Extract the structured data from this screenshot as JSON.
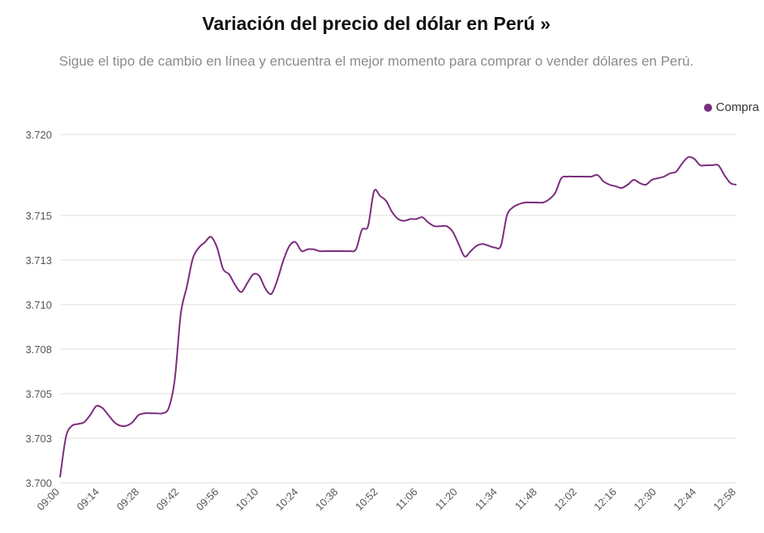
{
  "header": {
    "title": "Variación del precio del dólar en Perú »",
    "subtitle": "Sigue el tipo de cambio en línea y encuentra el mejor momento para comprar o vender dólares en Perú."
  },
  "legend": {
    "label": "Compra",
    "color": "#7b2c7e"
  },
  "chart_data": {
    "type": "line",
    "title": "Variación del precio del dólar en Perú »",
    "subtitle": "Sigue el tipo de cambio en línea y encuentra el mejor momento para comprar o vender dólares en Perú.",
    "legend_position": "top-right",
    "grid": true,
    "y_tick_labels": [
      "3.700",
      "3.703",
      "3.705",
      "3.708",
      "3.710",
      "3.713",
      "3.715",
      "3.720"
    ],
    "x_tick_labels": [
      "09:00",
      "09:14",
      "09:28",
      "09:42",
      "09:56",
      "10:10",
      "10:24",
      "10:38",
      "10:52",
      "11:06",
      "11:20",
      "11:34",
      "11:48",
      "12:02",
      "12:16",
      "12:30",
      "12:44",
      "12:58"
    ],
    "series": [
      {
        "name": "Compra",
        "color": "#7b2c7e",
        "points": [
          [
            "09:00",
            3.7003
          ],
          [
            "09:01",
            3.7026
          ],
          [
            "09:02",
            3.7032
          ],
          [
            "09:03",
            3.7033
          ],
          [
            "09:04",
            3.7034
          ],
          [
            "09:05",
            3.7038
          ],
          [
            "09:06",
            3.7043
          ],
          [
            "09:07",
            3.7042
          ],
          [
            "09:08",
            3.7038
          ],
          [
            "09:09",
            3.7034
          ],
          [
            "09:10",
            3.7032
          ],
          [
            "09:11",
            3.7032
          ],
          [
            "09:12",
            3.7034
          ],
          [
            "09:13",
            3.7038
          ],
          [
            "09:14",
            3.7039
          ],
          [
            "09:15",
            3.7039
          ],
          [
            "09:16",
            3.7039
          ],
          [
            "09:17",
            3.7039
          ],
          [
            "09:18",
            3.7042
          ],
          [
            "09:19",
            3.7058
          ],
          [
            "09:20",
            3.7095
          ],
          [
            "09:21",
            3.711
          ],
          [
            "09:22",
            3.7126
          ],
          [
            "09:23",
            3.7132
          ],
          [
            "09:24",
            3.7135
          ],
          [
            "09:25",
            3.7138
          ],
          [
            "09:26",
            3.7132
          ],
          [
            "09:27",
            3.712
          ],
          [
            "09:28",
            3.7117
          ],
          [
            "09:29",
            3.7111
          ],
          [
            "09:30",
            3.7107
          ],
          [
            "09:31",
            3.7112
          ],
          [
            "09:32",
            3.7117
          ],
          [
            "09:33",
            3.7116
          ],
          [
            "09:34",
            3.7109
          ],
          [
            "09:35",
            3.7106
          ],
          [
            "09:36",
            3.7114
          ],
          [
            "09:37",
            3.7125
          ],
          [
            "09:38",
            3.7133
          ],
          [
            "09:39",
            3.7135
          ],
          [
            "09:40",
            3.713
          ],
          [
            "09:41",
            3.7131
          ],
          [
            "09:42",
            3.7131
          ],
          [
            "09:44",
            3.713
          ],
          [
            "09:46",
            3.713
          ],
          [
            "09:48",
            3.713
          ],
          [
            "09:50",
            3.713
          ],
          [
            "09:52",
            3.713
          ],
          [
            "09:54",
            3.713
          ],
          [
            "09:56",
            3.7131
          ],
          [
            "09:57",
            3.7142
          ],
          [
            "09:58",
            3.7144
          ],
          [
            "09:59",
            3.7165
          ],
          [
            "10:00",
            3.7162
          ],
          [
            "10:01",
            3.7159
          ],
          [
            "10:02",
            3.7152
          ],
          [
            "10:03",
            3.7148
          ],
          [
            "10:04",
            3.7147
          ],
          [
            "10:06",
            3.7148
          ],
          [
            "10:08",
            3.7148
          ],
          [
            "10:10",
            3.7149
          ],
          [
            "10:11",
            3.7146
          ],
          [
            "10:12",
            3.7144
          ],
          [
            "10:13",
            3.7144
          ],
          [
            "10:14",
            3.7144
          ],
          [
            "10:15",
            3.7141
          ],
          [
            "10:16",
            3.7134
          ],
          [
            "10:17",
            3.7127
          ],
          [
            "10:18",
            3.713
          ],
          [
            "10:19",
            3.7133
          ],
          [
            "10:20",
            3.7134
          ],
          [
            "10:21",
            3.7133
          ],
          [
            "10:22",
            3.7132
          ],
          [
            "10:23",
            3.7133
          ],
          [
            "10:24",
            3.715
          ],
          [
            "10:25",
            3.7155
          ],
          [
            "10:26",
            3.7157
          ],
          [
            "10:27",
            3.7158
          ],
          [
            "10:28",
            3.7158
          ],
          [
            "10:29",
            3.7158
          ],
          [
            "10:30",
            3.7158
          ],
          [
            "10:31",
            3.716
          ],
          [
            "10:32",
            3.7164
          ],
          [
            "10:33",
            3.7173
          ],
          [
            "10:34",
            3.7174
          ],
          [
            "10:35",
            3.7174
          ],
          [
            "10:36",
            3.7174
          ],
          [
            "10:37",
            3.7174
          ],
          [
            "10:38",
            3.7174
          ],
          [
            "10:39",
            3.7175
          ],
          [
            "10:40",
            3.7171
          ],
          [
            "10:41",
            3.7169
          ],
          [
            "10:42",
            3.7168
          ],
          [
            "10:43",
            3.7167
          ],
          [
            "10:44",
            3.7169
          ],
          [
            "10:45",
            3.7172
          ],
          [
            "10:46",
            3.717
          ],
          [
            "10:47",
            3.7169
          ],
          [
            "10:48",
            3.7172
          ],
          [
            "10:49",
            3.7173
          ],
          [
            "10:50",
            3.7174
          ],
          [
            "10:51",
            3.7176
          ],
          [
            "10:52",
            3.7177
          ],
          [
            "10:53",
            3.7182
          ],
          [
            "10:54",
            3.7186
          ],
          [
            "10:55",
            3.7185
          ],
          [
            "10:56",
            3.7181
          ],
          [
            "10:57",
            3.7181
          ],
          [
            "10:58",
            3.7181
          ],
          [
            "10:59",
            3.7181
          ],
          [
            "11:00",
            3.7175
          ],
          [
            "11:01",
            3.717
          ],
          [
            "11:02",
            3.7169
          ]
        ]
      }
    ]
  }
}
